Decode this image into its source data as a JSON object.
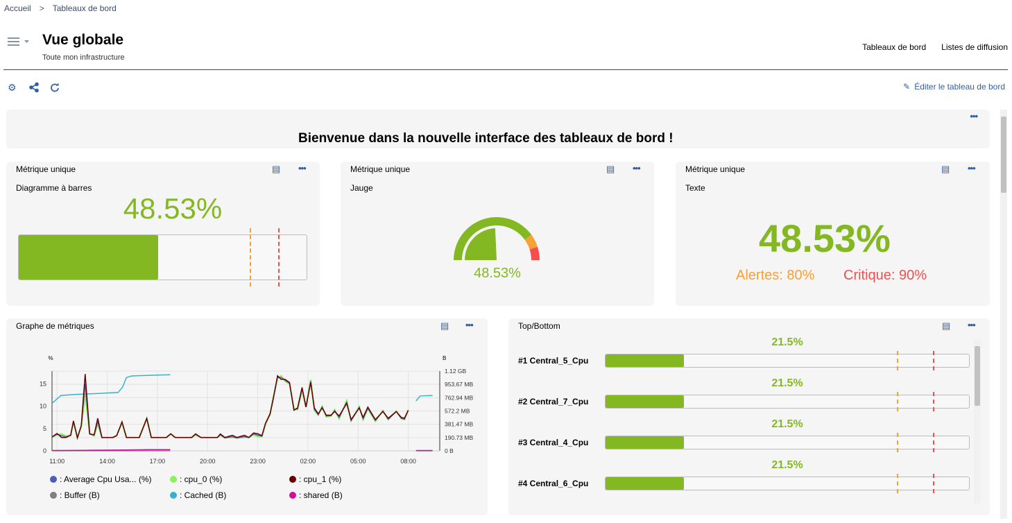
{
  "breadcrumb": {
    "home": "Accueil",
    "current": "Tableaux de bord"
  },
  "header": {
    "title": "Vue globale",
    "subtitle": "Toute mon infrastructure",
    "links": [
      "Tableaux de bord",
      "Listes de diffusion"
    ]
  },
  "toolbar": {
    "icons": [
      "gear-icon",
      "share-icon",
      "refresh-icon"
    ],
    "edit_label": "Éditer le tableau de bord"
  },
  "colors": {
    "accent": "#2e5fa8",
    "ok": "#84b823",
    "warning": "#f7a036",
    "critical": "#f54e4e"
  },
  "welcome": {
    "text": "Bienvenue dans la nouvelle interface des tableaux de bord !"
  },
  "widgets": [
    {
      "title": "Métrique unique",
      "label": "Diagramme à barres",
      "value": "48.53%",
      "percent": 48.53,
      "warning": 80,
      "critical": 90
    },
    {
      "title": "Métrique unique",
      "label": "Jauge",
      "value": "48.53%",
      "percent": 48.53,
      "warning": 80,
      "critical": 90
    },
    {
      "title": "Métrique unique",
      "label": "Texte",
      "value": "48.53%",
      "warning_text": "Alertes: 80%",
      "critical_text": "Critique: 90%"
    }
  ],
  "graph": {
    "title": "Graphe de métriques",
    "legend": [
      {
        "label": ": Average Cpu Usa... (%)",
        "color": "#4a5fb5"
      },
      {
        "label": ": cpu_0 (%)",
        "color": "#8cf25a"
      },
      {
        "label": ": cpu_1 (%)",
        "color": "#6b0000"
      },
      {
        "label": ": Buffer (B)",
        "color": "#808080"
      },
      {
        "label": ": Cached (B)",
        "color": "#36b3c9"
      },
      {
        "label": ": shared (B)",
        "color": "#d10e9a"
      }
    ]
  },
  "chart_data": {
    "type": "line",
    "left_unit": "%",
    "right_unit": "B",
    "xlim": [
      "10:42",
      "09:53"
    ],
    "x_ticks": [
      "11:00",
      "14:00",
      "17:00",
      "20:00",
      "23:00",
      "02:00",
      "05:00",
      "08:00"
    ],
    "left_ylim": [
      0,
      17.85
    ],
    "left_ticks": [
      "0",
      "5",
      "10",
      "15"
    ],
    "right_ylim_mb": [
      0,
      1144.4
    ],
    "right_ticks": [
      "0 B",
      "190.73 MB",
      "381.47 MB",
      "572.2 MB",
      "762.94 MB",
      "953.67 MB",
      "1.12 GB"
    ],
    "grid": true,
    "x": [
      "10:42",
      "11:00",
      "11:16",
      "11:32",
      "11:49",
      "11:59",
      "12:13",
      "12:27",
      "12:41",
      "12:57",
      "13:13",
      "13:26",
      "13:41",
      "14:20",
      "14:34",
      "14:53",
      "15:09",
      "15:55",
      "16:22",
      "16:38",
      "17:32",
      "17:48",
      "18:04",
      "19:03",
      "19:17",
      "19:36",
      "20:35",
      "20:46",
      "21:02",
      "21:29",
      "21:45",
      "22:12",
      "22:28",
      "22:45",
      "23:01",
      "23:15",
      "23:28",
      "23:44",
      "23:55",
      "00:11",
      "00:24",
      "00:38",
      "00:54",
      "01:10",
      "01:23",
      "01:39",
      "01:53",
      "02:10",
      "02:23",
      "02:37",
      "02:51",
      "03:06",
      "03:23",
      "03:36",
      "03:52",
      "04:19",
      "04:35",
      "05:04",
      "05:18",
      "05:35",
      "06:02",
      "06:29",
      "06:48",
      "07:17",
      "07:35",
      "07:46",
      "08:00"
    ],
    "series": [
      {
        "name": "cpu_0",
        "axis": "left",
        "values": [
          3.1,
          3.6,
          3.8,
          3.3,
          3.5,
          6.5,
          3.0,
          5.5,
          12.5,
          3.8,
          3.4,
          6.0,
          3.0,
          3.0,
          3.4,
          6.3,
          3.0,
          3.0,
          7.2,
          3.0,
          3.0,
          3.8,
          3.0,
          3.0,
          3.6,
          3.0,
          3.0,
          3.5,
          2.9,
          3.0,
          2.9,
          3.0,
          3.0,
          3.6,
          3.2,
          3.2,
          6.0,
          8.1,
          11.8,
          16.2,
          16.8,
          15.6,
          15.0,
          9.4,
          9.3,
          13.6,
          9.8,
          15.9,
          9.1,
          8.0,
          10.0,
          7.6,
          7.8,
          9.2,
          7.2,
          11.2,
          6.7,
          9.9,
          7.0,
          9.4,
          6.6,
          9.0,
          7.0,
          8.9,
          7.2,
          7.0,
          9.1
        ]
      },
      {
        "name": "cpu_1",
        "axis": "left",
        "values": [
          3.1,
          3.9,
          3.0,
          3.0,
          3.5,
          6.7,
          2.9,
          5.7,
          17.2,
          3.8,
          3.6,
          7.3,
          3.0,
          3.0,
          3.4,
          6.5,
          3.0,
          3.0,
          7.3,
          3.0,
          3.0,
          3.8,
          3.0,
          3.0,
          3.8,
          3.0,
          3.0,
          3.8,
          3.0,
          3.5,
          3.0,
          3.5,
          3.0,
          4.0,
          3.8,
          3.4,
          6.2,
          8.3,
          11.4,
          16.8,
          16.0,
          16.0,
          15.3,
          9.1,
          9.6,
          14.2,
          9.8,
          15.3,
          9.6,
          8.3,
          9.6,
          8.0,
          8.0,
          8.8,
          7.8,
          10.6,
          7.0,
          9.6,
          7.5,
          9.8,
          7.0,
          8.8,
          7.3,
          8.8,
          7.5,
          7.3,
          9.1
        ]
      },
      {
        "name": "Average Cpu Usa...",
        "axis": "left",
        "values": [
          3.1,
          3.7,
          3.4,
          3.1,
          3.5,
          6.6,
          2.9,
          5.6,
          15.0,
          3.8,
          3.5,
          6.6,
          3.0,
          3.0,
          3.4,
          6.4,
          3.0,
          3.0,
          7.2,
          3.0,
          3.0,
          3.8,
          3.0,
          3.0,
          3.7,
          3.0,
          3.0,
          3.6,
          2.9,
          3.2,
          2.9,
          3.2,
          3.0,
          3.8,
          3.5,
          3.3,
          6.1,
          8.2,
          11.6,
          16.5,
          16.4,
          15.8,
          15.1,
          9.2,
          9.4,
          13.9,
          9.8,
          15.6,
          9.3,
          8.1,
          9.8,
          7.8,
          7.9,
          9.0,
          7.5,
          10.9,
          6.8,
          9.7,
          7.2,
          9.6,
          6.8,
          8.9,
          7.1,
          8.8,
          7.3,
          7.1,
          9.1
        ]
      },
      {
        "name": "Buffer",
        "axis": "right",
        "x": [
          "10:42",
          "17:46",
          null,
          "08:28",
          "09:27"
        ],
        "values": [
          1,
          1,
          null,
          1,
          1
        ]
      },
      {
        "name": "Cached",
        "axis": "right",
        "x": [
          "10:42",
          "11:14",
          "12:08",
          "13:23",
          "14:39",
          "14:55",
          "15:09",
          "15:28",
          "16:38",
          "17:46",
          null,
          "08:28",
          "08:43",
          "09:27"
        ],
        "values": [
          683,
          795,
          810,
          822,
          838,
          915,
          1053,
          1075,
          1085,
          1092,
          null,
          716,
          788,
          795
        ]
      },
      {
        "name": "shared",
        "axis": "right",
        "x": [
          "10:42",
          "12:40",
          "15:00",
          "16:30",
          "17:46",
          null,
          "08:28",
          "09:27"
        ],
        "values": [
          5,
          8,
          12,
          18,
          18,
          null,
          5,
          5
        ]
      }
    ]
  },
  "topbottom": {
    "title": "Top/Bottom",
    "warning": 80,
    "critical": 90,
    "items": [
      {
        "rank": "#1 Central_5_Cpu",
        "value": "21.5%",
        "percent": 21.5
      },
      {
        "rank": "#2 Central_7_Cpu",
        "value": "21.5%",
        "percent": 21.5
      },
      {
        "rank": "#3 Central_4_Cpu",
        "value": "21.5%",
        "percent": 21.5
      },
      {
        "rank": "#4 Central_6_Cpu",
        "value": "21.5%",
        "percent": 21.5
      }
    ]
  }
}
